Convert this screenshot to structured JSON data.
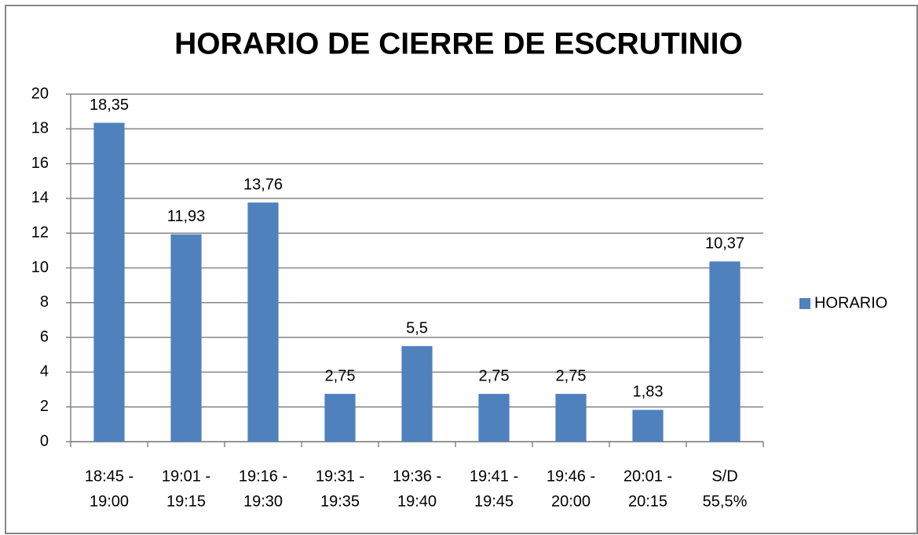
{
  "chart_data": {
    "type": "bar",
    "title": "HORARIO DE CIERRE DE ESCRUTINIO",
    "categories": [
      [
        "18:45 -",
        "19:00"
      ],
      [
        "19:01 -",
        "19:15"
      ],
      [
        "19:16 -",
        "19:30"
      ],
      [
        "19:31 -",
        "19:35"
      ],
      [
        "19:36 -",
        "19:40"
      ],
      [
        "19:41 -",
        "19:45"
      ],
      [
        "19:46 -",
        "20:00"
      ],
      [
        "20:01 -",
        "20:15"
      ],
      [
        "S/D",
        "55,5%"
      ]
    ],
    "series": [
      {
        "name": "HORARIO",
        "color": "#4f81bd",
        "values": [
          18.35,
          11.93,
          13.76,
          2.75,
          5.5,
          2.75,
          2.75,
          1.83,
          10.37
        ],
        "value_labels": [
          "18,35",
          "11,93",
          "13,76",
          "2,75",
          "5,5",
          "2,75",
          "2,75",
          "1,83",
          "10,37"
        ]
      }
    ],
    "ylim": [
      0,
      20
    ],
    "yticks": [
      0,
      2,
      4,
      6,
      8,
      10,
      12,
      14,
      16,
      18,
      20
    ],
    "grid": true,
    "legend": "right"
  }
}
